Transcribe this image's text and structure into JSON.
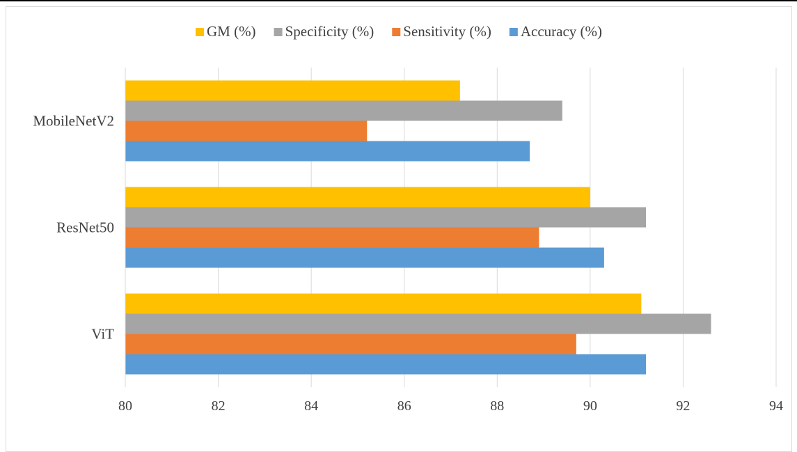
{
  "chart_data": {
    "type": "bar",
    "orientation": "horizontal",
    "categories": [
      "ViT",
      "ResNet50",
      "MobileNetV2"
    ],
    "series": [
      {
        "name": "Accuracy (%)",
        "color": "#5b9bd5",
        "values": [
          91.2,
          90.3,
          88.7
        ]
      },
      {
        "name": "Sensitivity (%)",
        "color": "#ed7d31",
        "values": [
          89.7,
          88.9,
          85.2
        ]
      },
      {
        "name": "Specificity (%)",
        "color": "#a5a5a5",
        "values": [
          92.6,
          91.2,
          89.4
        ]
      },
      {
        "name": "GM (%)",
        "color": "#ffc000",
        "values": [
          91.1,
          90.0,
          87.2
        ]
      }
    ],
    "xlim": [
      80,
      94
    ],
    "x_ticks": [
      80,
      82,
      84,
      86,
      88,
      90,
      92,
      94
    ],
    "grid": "vertical",
    "legend_position": "top",
    "legend_order": [
      "GM (%)",
      "Specificity (%)",
      "Sensitivity (%)",
      "Accuracy (%)"
    ]
  }
}
